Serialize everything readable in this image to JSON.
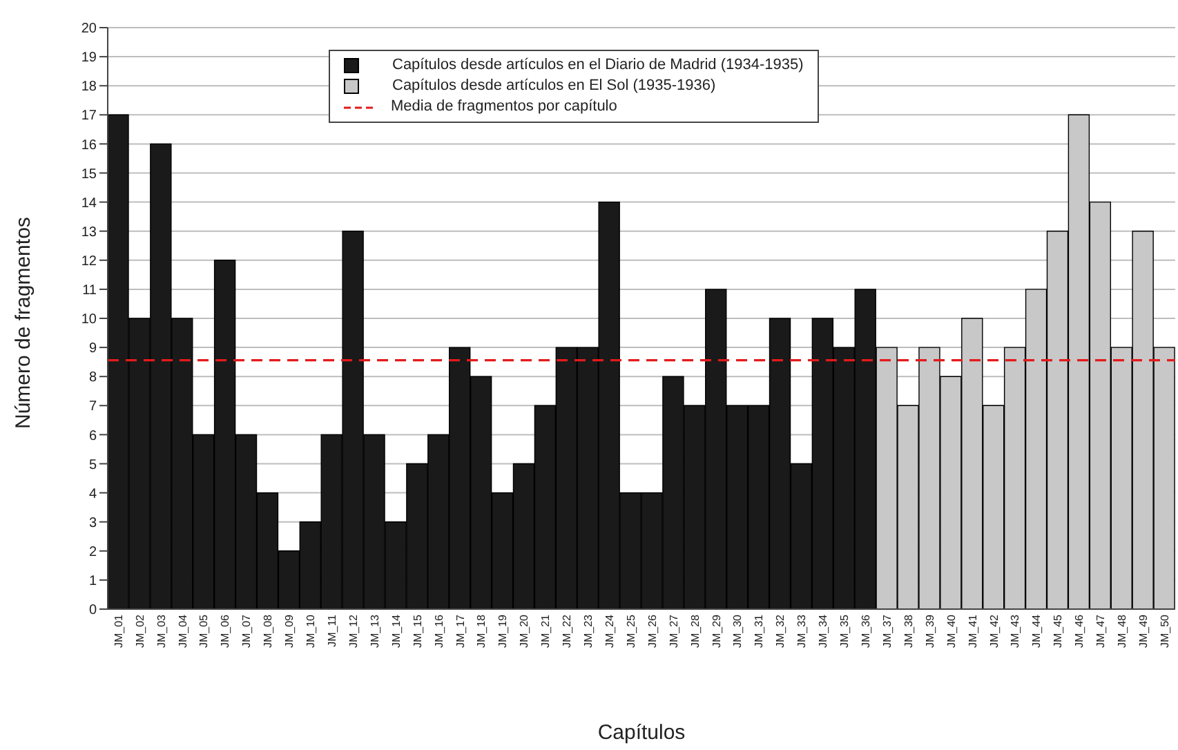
{
  "chart_data": {
    "type": "bar",
    "xlabel": "Capítulos",
    "ylabel": "Número de fragmentos",
    "categories": [
      "JM_01",
      "JM_02",
      "JM_03",
      "JM_04",
      "JM_05",
      "JM_06",
      "JM_07",
      "JM_08",
      "JM_09",
      "JM_10",
      "JM_11",
      "JM_12",
      "JM_13",
      "JM_14",
      "JM_15",
      "JM_16",
      "JM_17",
      "JM_18",
      "JM_19",
      "JM_20",
      "JM_21",
      "JM_22",
      "JM_23",
      "JM_24",
      "JM_25",
      "JM_26",
      "JM_27",
      "JM_28",
      "JM_29",
      "JM_30",
      "JM_31",
      "JM_32",
      "JM_33",
      "JM_34",
      "JM_35",
      "JM_36",
      "JM_37",
      "JM_38",
      "JM_39",
      "JM_40",
      "JM_41",
      "JM_42",
      "JM_43",
      "JM_44",
      "JM_45",
      "JM_46",
      "JM_47",
      "JM_48",
      "JM_49",
      "JM_50"
    ],
    "series": [
      {
        "name": "Capítulos desde artículos en el Diario de Madrid (1934-1935)",
        "color": "#1a1a1a",
        "values": [
          17,
          10,
          16,
          10,
          6,
          12,
          6,
          4,
          2,
          3,
          6,
          13,
          6,
          3,
          5,
          6,
          9,
          8,
          4,
          5,
          7,
          9,
          9,
          14,
          4,
          4,
          8,
          7,
          11,
          7,
          7,
          10,
          5,
          10,
          9,
          11,
          null,
          null,
          null,
          null,
          null,
          null,
          null,
          null,
          null,
          null,
          null,
          null,
          null,
          null
        ]
      },
      {
        "name": "Capítulos desde artículos en El Sol (1935-1936)",
        "color": "#c8c8c8",
        "values": [
          null,
          null,
          null,
          null,
          null,
          null,
          null,
          null,
          null,
          null,
          null,
          null,
          null,
          null,
          null,
          null,
          null,
          null,
          null,
          null,
          null,
          null,
          null,
          null,
          null,
          null,
          null,
          null,
          null,
          null,
          null,
          null,
          null,
          null,
          null,
          null,
          9,
          7,
          9,
          8,
          10,
          7,
          9,
          11,
          13,
          17,
          14,
          9,
          13,
          9
        ]
      }
    ],
    "stacked": true,
    "ylim": [
      0,
      20
    ],
    "yticks": [
      0,
      1,
      2,
      3,
      4,
      5,
      6,
      7,
      8,
      9,
      10,
      11,
      12,
      13,
      14,
      15,
      16,
      17,
      18,
      19,
      20
    ],
    "grid": "y",
    "legend": "top",
    "ref_lines": [
      {
        "axis": "y",
        "value": 8.56,
        "label": "Media de fragmentos por capítulo",
        "color": "#e31a1c",
        "line_style": "dashed"
      }
    ]
  }
}
